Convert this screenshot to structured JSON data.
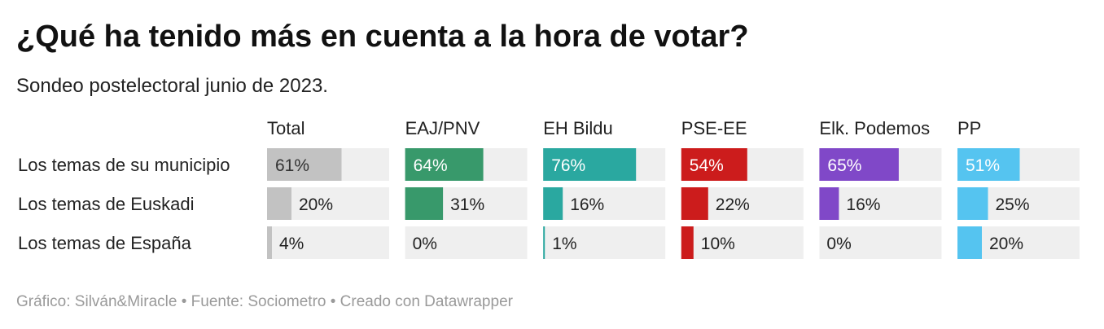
{
  "header": {
    "title": "¿Qué ha tenido más en cuenta a la hora de votar?",
    "subtitle": "Sondeo postelectoral junio de 2023."
  },
  "footer": {
    "credit": "Gráfico: Silván&Miracle • Fuente: Sociometro • Creado con Datawrapper"
  },
  "chart_data": {
    "type": "bar",
    "layout": "small-multiples horizontal bars",
    "categories": [
      "Los temas de su municipio",
      "Los temas de Euskadi",
      "Los temas de España"
    ],
    "unit": "%",
    "xlim": [
      0,
      100
    ],
    "series": [
      {
        "name": "Total",
        "color": "#c2c2c2",
        "values": [
          61,
          20,
          4
        ]
      },
      {
        "name": "EAJ/PNV",
        "color": "#38996b",
        "values": [
          64,
          31,
          0
        ]
      },
      {
        "name": "EH Bildu",
        "color": "#2aa8a0",
        "values": [
          76,
          16,
          1
        ]
      },
      {
        "name": "PSE-EE",
        "color": "#cc1c1c",
        "values": [
          54,
          22,
          10
        ]
      },
      {
        "name": "Elk. Podemos",
        "color": "#8048c8",
        "values": [
          65,
          16,
          0
        ]
      },
      {
        "name": "PP",
        "color": "#55c4f0",
        "values": [
          51,
          25,
          20
        ]
      }
    ],
    "background_color": "#efefef"
  }
}
